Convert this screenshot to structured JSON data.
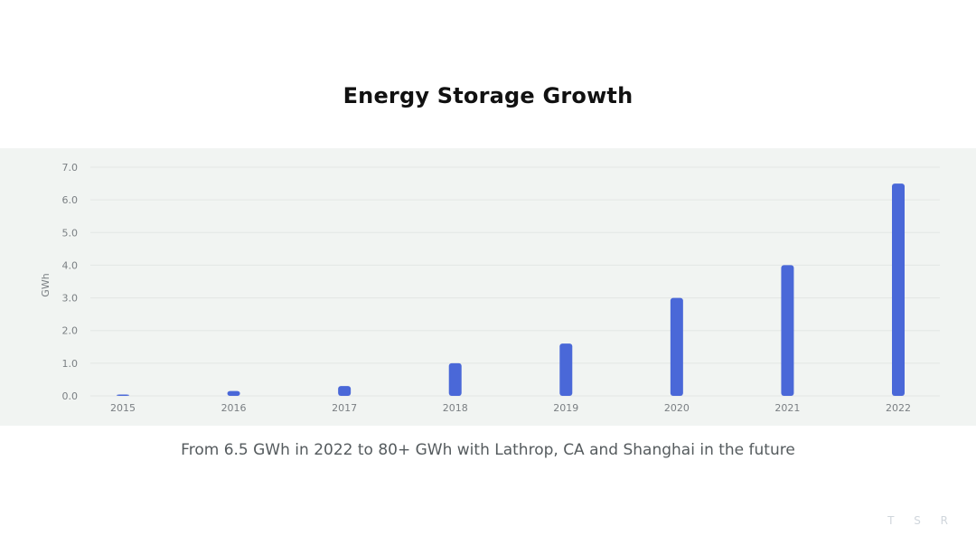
{
  "title": "Energy Storage Growth",
  "caption": "From 6.5 GWh in 2022 to 80+ GWh with Lathrop, CA and Shanghai in the future",
  "watermark": "T S R",
  "colors": {
    "bar": "#4a68d8",
    "band": "#f1f4f2",
    "grid": "#e2e6e4"
  },
  "chart_data": {
    "type": "bar",
    "categories": [
      "2015",
      "2016",
      "2017",
      "2018",
      "2019",
      "2020",
      "2021",
      "2022"
    ],
    "values": [
      0.02,
      0.15,
      0.3,
      1.0,
      1.6,
      3.0,
      4.0,
      6.5
    ],
    "ylabel": "GWh",
    "xlabel": "",
    "ylim": [
      0,
      7
    ],
    "yticks": [
      "0.0",
      "1.0",
      "2.0",
      "3.0",
      "4.0",
      "5.0",
      "6.0",
      "7.0"
    ],
    "grid": true,
    "legend": false
  }
}
